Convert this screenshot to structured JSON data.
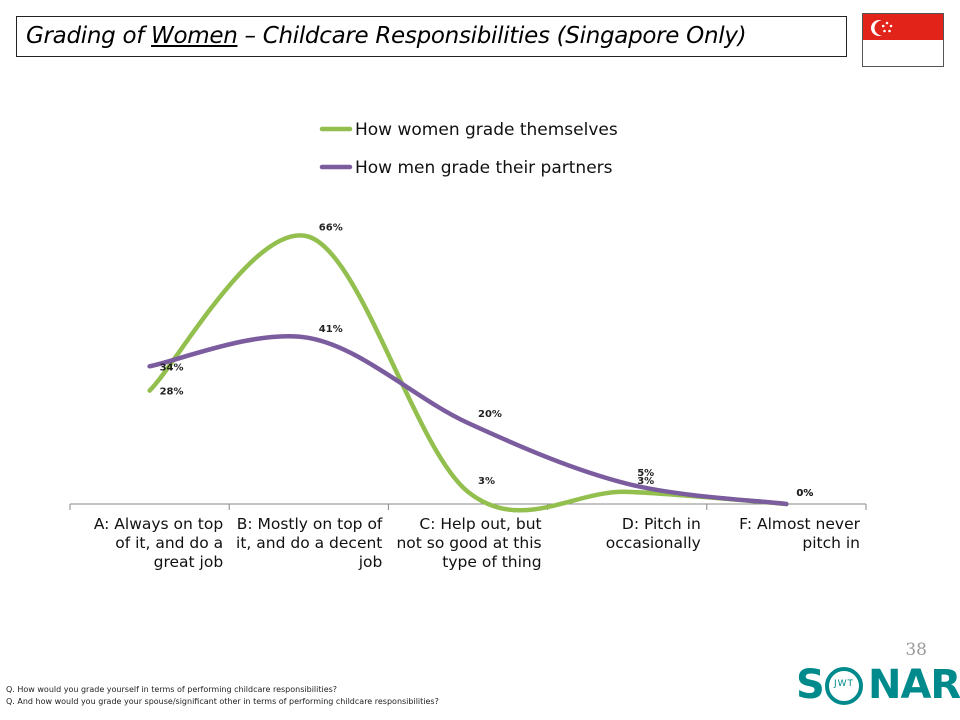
{
  "header": {
    "title_pre": "Grading of ",
    "title_underlined": "Women",
    "title_post": " – Childcare Responsibilities (Singapore Only)"
  },
  "flag": {
    "name": "singapore-flag",
    "top_color": "#e2231a",
    "bottom_color": "#ffffff"
  },
  "page_number": "38",
  "footnotes": [
    "Q. How would you grade yourself in terms of performing childcare responsibilities?",
    "Q. And how would you grade your spouse/significant other in terms of performing childcare responsibilities?"
  ],
  "logo": {
    "name": "sonar-logo",
    "left": "S",
    "center": "JWT",
    "right": "NAR",
    "color": "#008a8c"
  },
  "chart_data": {
    "type": "line",
    "smooth": true,
    "categories": [
      [
        "A: Always on top",
        "of it, and do a",
        "great job"
      ],
      [
        "B: Mostly on top of",
        "it, and do a decent",
        "job"
      ],
      [
        "C: Help out, but",
        "not so good at this",
        "type of thing"
      ],
      [
        "D: Pitch in",
        "occasionally"
      ],
      [
        "F: Almost never",
        "pitch in"
      ]
    ],
    "series": [
      {
        "name": "How women grade themselves",
        "color": "#93bf4f",
        "values": [
          28,
          66,
          3,
          3,
          0
        ],
        "labels": [
          "28%",
          "66%",
          "3%",
          "3%",
          "0%"
        ]
      },
      {
        "name": "How men grade their partners",
        "color": "#7b5c9e",
        "values": [
          34,
          41,
          20,
          5,
          0
        ],
        "labels": [
          "34%",
          "41%",
          "20%",
          "5%",
          "0%"
        ]
      }
    ],
    "ylim": [
      0,
      80
    ],
    "legend_position": "top",
    "grid": false
  }
}
